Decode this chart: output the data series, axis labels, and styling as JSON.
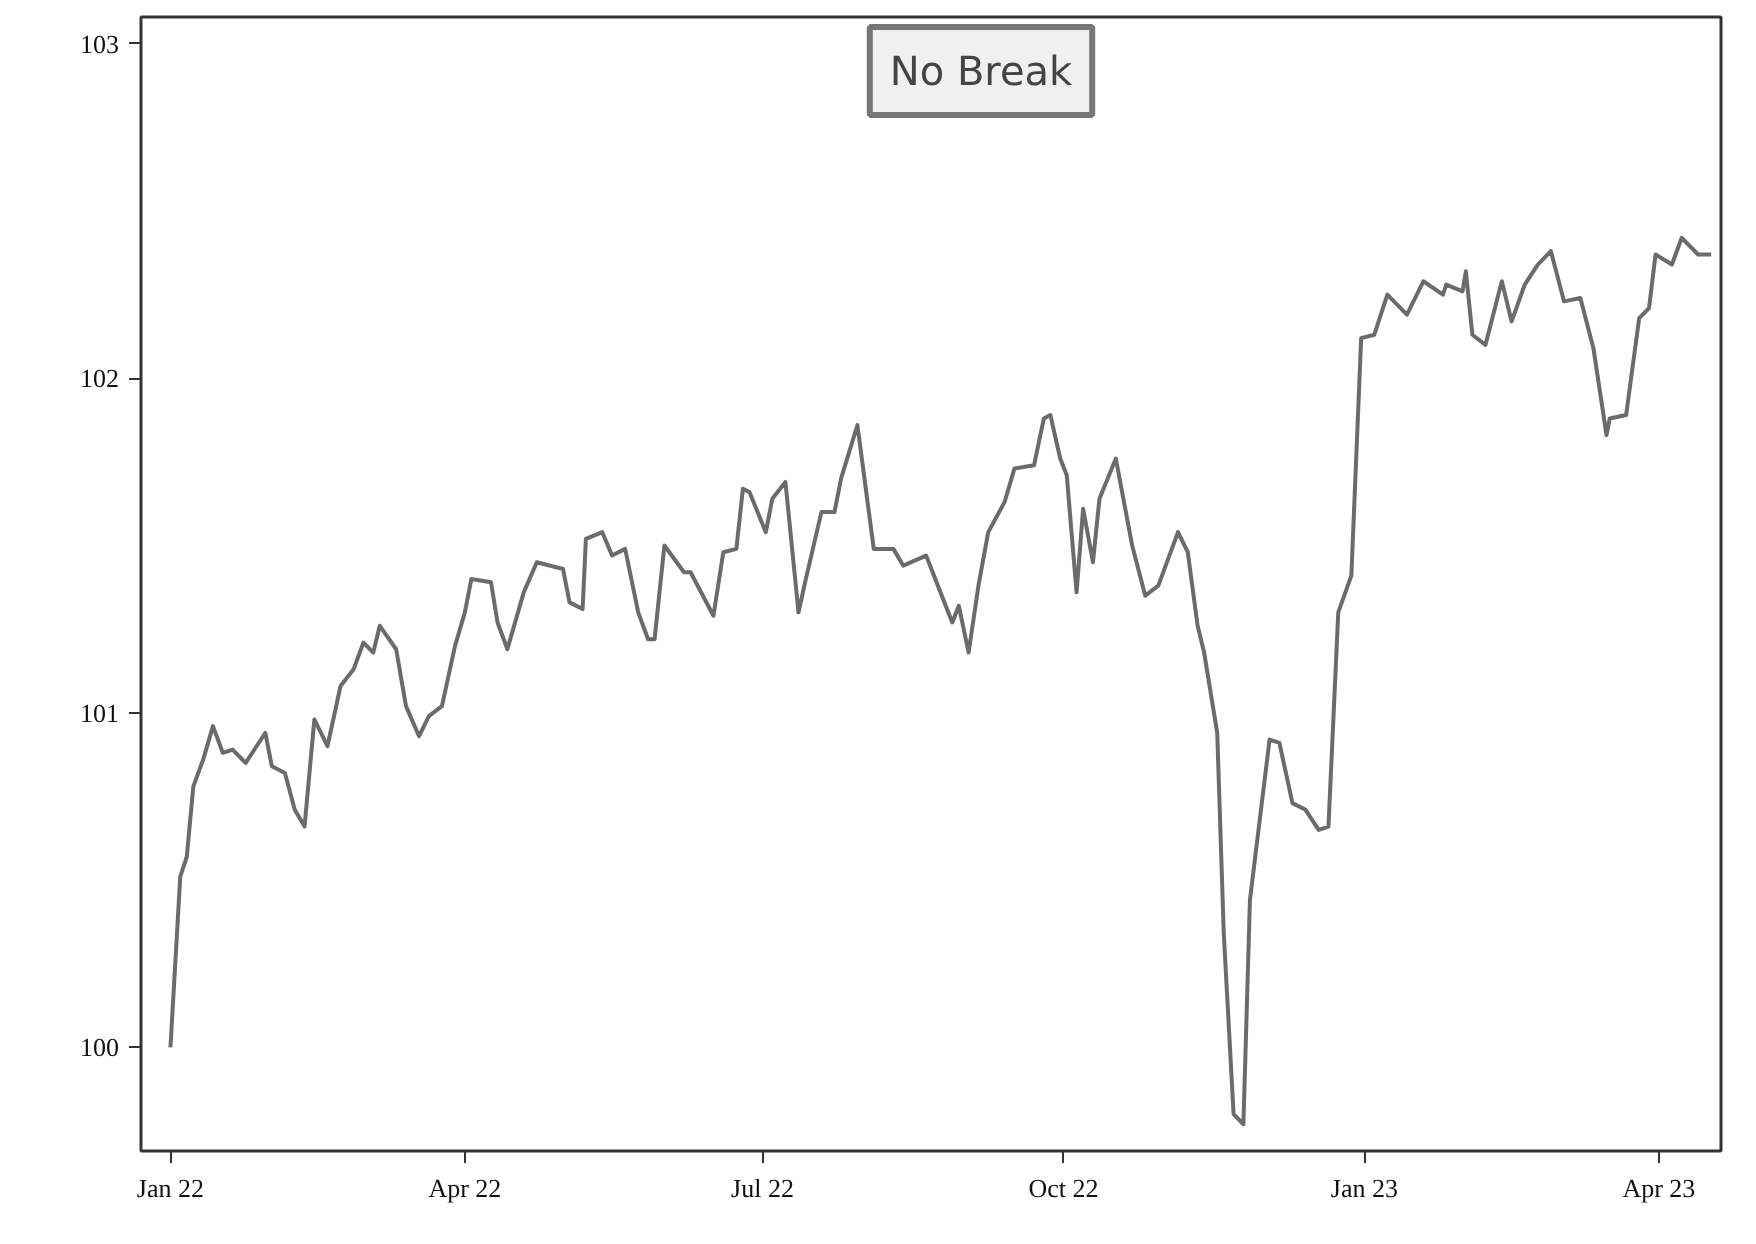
{
  "chart_data": {
    "type": "line",
    "annotations": [
      "No Break"
    ],
    "xlim": [
      "2021-12-23",
      "2023-04-20"
    ],
    "ylim": [
      99.69,
      103.08
    ],
    "xticks": [
      {
        "value": "2022-01-01",
        "label": "Jan 22"
      },
      {
        "value": "2022-04-01",
        "label": "Apr 22"
      },
      {
        "value": "2022-07-01",
        "label": "Jul 22"
      },
      {
        "value": "2022-10-01",
        "label": "Oct 22"
      },
      {
        "value": "2023-01-01",
        "label": "Jan 23"
      },
      {
        "value": "2023-04-01",
        "label": "Apr 23"
      }
    ],
    "yticks": [
      100,
      101,
      102,
      103
    ],
    "grid": false,
    "marker": "none",
    "line_style": "solid",
    "x": [
      "2022-01-01",
      "2022-01-04",
      "2022-01-06",
      "2022-01-08",
      "2022-01-11",
      "2022-01-14",
      "2022-01-17",
      "2022-01-20",
      "2022-01-24",
      "2022-01-30",
      "2022-02-01",
      "2022-02-05",
      "2022-02-08",
      "2022-02-11",
      "2022-02-14",
      "2022-02-18",
      "2022-02-22",
      "2022-02-26",
      "2022-03-01",
      "2022-03-04",
      "2022-03-06",
      "2022-03-11",
      "2022-03-14",
      "2022-03-18",
      "2022-03-21",
      "2022-03-25",
      "2022-03-29",
      "2022-04-01",
      "2022-04-03",
      "2022-04-09",
      "2022-04-11",
      "2022-04-14",
      "2022-04-19",
      "2022-04-23",
      "2022-05-01",
      "2022-05-03",
      "2022-05-07",
      "2022-05-08",
      "2022-05-13",
      "2022-05-16",
      "2022-05-20",
      "2022-05-24",
      "2022-05-27",
      "2022-05-29",
      "2022-06-01",
      "2022-06-07",
      "2022-06-09",
      "2022-06-16",
      "2022-06-19",
      "2022-06-23",
      "2022-06-25",
      "2022-06-27",
      "2022-07-02",
      "2022-07-04",
      "2022-07-08",
      "2022-07-12",
      "2022-07-14",
      "2022-07-19",
      "2022-07-23",
      "2022-07-25",
      "2022-07-30",
      "2022-08-04",
      "2022-08-10",
      "2022-08-13",
      "2022-08-20",
      "2022-08-28",
      "2022-08-30",
      "2022-09-02",
      "2022-09-05",
      "2022-09-08",
      "2022-09-13",
      "2022-09-16",
      "2022-09-22",
      "2022-09-25",
      "2022-09-27",
      "2022-09-30",
      "2022-10-02",
      "2022-10-05",
      "2022-10-07",
      "2022-10-10",
      "2022-10-12",
      "2022-10-17",
      "2022-10-22",
      "2022-10-26",
      "2022-10-30",
      "2022-11-05",
      "2022-11-08",
      "2022-11-11",
      "2022-11-13",
      "2022-11-17",
      "2022-11-19",
      "2022-11-22",
      "2022-11-25",
      "2022-11-27",
      "2022-12-01",
      "2022-12-03",
      "2022-12-06",
      "2022-12-10",
      "2022-12-14",
      "2022-12-18",
      "2022-12-21",
      "2022-12-24",
      "2022-12-28",
      "2022-12-31",
      "2023-01-04",
      "2023-01-08",
      "2023-01-14",
      "2023-01-19",
      "2023-01-25",
      "2023-01-26",
      "2023-01-31",
      "2023-02-01",
      "2023-02-03",
      "2023-02-07",
      "2023-02-12",
      "2023-02-15",
      "2023-02-19",
      "2023-02-23",
      "2023-02-27",
      "2023-03-03",
      "2023-03-08",
      "2023-03-12",
      "2023-03-16",
      "2023-03-17",
      "2023-03-22",
      "2023-03-26",
      "2023-03-29",
      "2023-03-31",
      "2023-04-05",
      "2023-04-08",
      "2023-04-13",
      "2023-04-17"
    ],
    "series": [
      {
        "color": "#6b6b6b",
        "values": [
          100.0,
          100.51,
          100.57,
          100.78,
          100.86,
          100.96,
          100.88,
          100.89,
          100.85,
          100.94,
          100.84,
          100.82,
          100.71,
          100.66,
          100.98,
          100.9,
          101.08,
          101.13,
          101.21,
          101.18,
          101.26,
          101.19,
          101.02,
          100.93,
          100.99,
          101.02,
          101.2,
          101.3,
          101.4,
          101.39,
          101.27,
          101.19,
          101.36,
          101.45,
          101.43,
          101.33,
          101.31,
          101.52,
          101.54,
          101.47,
          101.49,
          101.3,
          101.22,
          101.22,
          101.5,
          101.42,
          101.42,
          101.29,
          101.48,
          101.49,
          101.67,
          101.66,
          101.54,
          101.64,
          101.69,
          101.3,
          101.39,
          101.6,
          101.6,
          101.7,
          101.86,
          101.49,
          101.49,
          101.44,
          101.47,
          101.27,
          101.32,
          101.18,
          101.38,
          101.54,
          101.63,
          101.73,
          101.74,
          101.88,
          101.89,
          101.76,
          101.71,
          101.36,
          101.61,
          101.45,
          101.64,
          101.76,
          101.5,
          101.35,
          101.38,
          101.54,
          101.48,
          101.26,
          101.18,
          100.94,
          100.34,
          99.8,
          99.77,
          100.44,
          100.76,
          100.92,
          100.91,
          100.73,
          100.71,
          100.65,
          100.66,
          101.3,
          101.41,
          102.12,
          102.13,
          102.25,
          102.19,
          102.29,
          102.25,
          102.28,
          102.26,
          102.32,
          102.13,
          102.1,
          102.29,
          102.17,
          102.28,
          102.34,
          102.38,
          102.23,
          102.24,
          102.09,
          101.83,
          101.88,
          101.89,
          102.18,
          102.21,
          102.37,
          102.34,
          102.42,
          102.37,
          102.37
        ]
      }
    ]
  }
}
